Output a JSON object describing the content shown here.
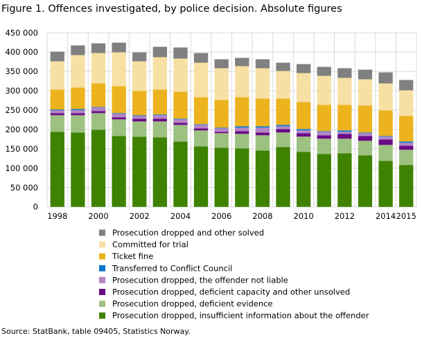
{
  "chart_data": {
    "type": "bar",
    "stacked": true,
    "title": "Figure 1. Offences investigated, by police decision. Absolute figures",
    "source": "Source: StatBank, table 09405, Statistics Norway.",
    "categories": [
      "1998",
      "1999",
      "2000",
      "2001",
      "2002",
      "2003",
      "2004",
      "2005",
      "2006",
      "2007",
      "2008",
      "2009",
      "2010",
      "2011",
      "2012",
      "2013",
      "2014",
      "2015"
    ],
    "x_tick_labels": [
      "1998",
      "2000",
      "2002",
      "2004",
      "2006",
      "2008",
      "2010",
      "2012",
      "2014",
      "2015"
    ],
    "y_tick_labels": [
      "0",
      "50 000",
      "100 000",
      "150 000",
      "200 000",
      "250 000",
      "300 000",
      "350 000",
      "400 000",
      "450 000"
    ],
    "ylim": [
      0,
      450000
    ],
    "grid": true,
    "legend_placement": "bottom",
    "series": [
      {
        "name": "Prosecution dropped, insufficient information about the offender",
        "color": "#3e8200",
        "values": [
          194000,
          192300,
          199400,
          183300,
          181500,
          179800,
          169000,
          156500,
          153000,
          151200,
          145800,
          154800,
          142300,
          136900,
          138700,
          133300,
          119000,
          108300
        ]
      },
      {
        "name": "Prosecution dropped, deficient evidence",
        "color": "#9dc180",
        "values": [
          42900,
          44600,
          42900,
          42900,
          39300,
          41100,
          42900,
          41100,
          37500,
          37500,
          39300,
          37500,
          39300,
          39300,
          37500,
          37500,
          41100,
          39300
        ]
      },
      {
        "name": "Prosecution dropped, deficient capacity and other unsolved",
        "color": "#6a0a87",
        "values": [
          5400,
          5400,
          5400,
          5400,
          7100,
          7100,
          5400,
          5400,
          3600,
          7100,
          7100,
          8900,
          8900,
          8900,
          12500,
          12500,
          14300,
          10700
        ]
      },
      {
        "name": "Prosecution dropped, the offender not liable",
        "color": "#b385c4",
        "values": [
          7700,
          7700,
          9500,
          8900,
          7100,
          8900,
          8900,
          8900,
          8900,
          8900,
          12500,
          7100,
          7100,
          8900,
          5400,
          7100,
          7100,
          7100
        ]
      },
      {
        "name": "Transferred to Conflict Council",
        "color": "#0f76d0",
        "values": [
          1800,
          3000,
          1200,
          1800,
          1800,
          1800,
          1800,
          1800,
          1800,
          3600,
          3600,
          3600,
          3600,
          1800,
          3600,
          1800,
          1800,
          3600
        ]
      },
      {
        "name": "Ticket fine",
        "color": "#ecb31f",
        "values": [
          51200,
          55400,
          60700,
          69600,
          62500,
          64300,
          69600,
          69600,
          71400,
          75000,
          71400,
          67900,
          69600,
          67900,
          66100,
          69600,
          66100,
          66100
        ]
      },
      {
        "name": "Committed for trial",
        "color": "#f7e0a3",
        "values": [
          73200,
          83900,
          78600,
          87500,
          76800,
          83900,
          85700,
          89300,
          82100,
          80400,
          78600,
          71400,
          75000,
          75000,
          69600,
          67900,
          69600,
          66100
        ]
      },
      {
        "name": "Prosecution dropped and other solved",
        "color": "#808080",
        "values": [
          25000,
          25000,
          25000,
          25000,
          23200,
          26800,
          28600,
          25000,
          23200,
          21400,
          23200,
          21400,
          23200,
          23200,
          25000,
          25000,
          28600,
          26800
        ]
      }
    ]
  }
}
